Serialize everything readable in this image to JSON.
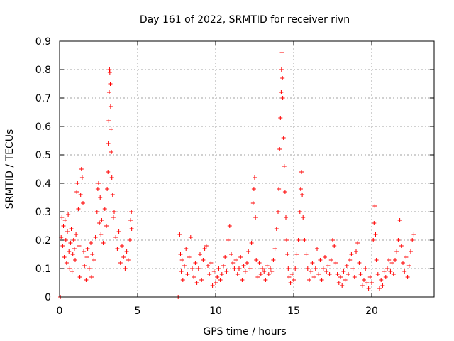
{
  "chart_data": {
    "type": "scatter",
    "title": "Day 161 of 2022, SRMTID for receiver rivn",
    "xlabel": "GPS time / hours",
    "ylabel": "SRMTID / TECUs",
    "xlim": [
      0,
      24
    ],
    "ylim": [
      0,
      0.9
    ],
    "x_ticks": [
      0,
      5,
      10,
      15,
      20
    ],
    "x_tick_labels": [
      "0",
      "5",
      "10",
      "15",
      "20"
    ],
    "y_ticks": [
      0,
      0.1,
      0.2,
      0.3,
      0.4,
      0.5,
      0.6,
      0.7,
      0.8,
      0.9
    ],
    "y_tick_labels": [
      "0",
      "0.1",
      "0.2",
      "0.3",
      "0.4",
      "0.5",
      "0.6",
      "0.7",
      "0.8",
      "0.9"
    ],
    "grid": true,
    "marker": "+",
    "color": "#ff0000",
    "series": [
      {
        "name": "SRMTID",
        "points": [
          [
            0.05,
            0.0
          ],
          [
            7.6,
            0.0
          ],
          [
            0.1,
            0.21
          ],
          [
            0.15,
            0.28
          ],
          [
            0.2,
            0.18
          ],
          [
            0.25,
            0.25
          ],
          [
            0.3,
            0.14
          ],
          [
            0.35,
            0.27
          ],
          [
            0.4,
            0.2
          ],
          [
            0.45,
            0.12
          ],
          [
            0.5,
            0.23
          ],
          [
            0.55,
            0.29
          ],
          [
            0.6,
            0.16
          ],
          [
            0.65,
            0.1
          ],
          [
            0.7,
            0.19
          ],
          [
            0.75,
            0.24
          ],
          [
            0.8,
            0.09
          ],
          [
            0.85,
            0.15
          ],
          [
            0.9,
            0.2
          ],
          [
            0.95,
            0.17
          ],
          [
            1.0,
            0.13
          ],
          [
            1.05,
            0.22
          ],
          [
            1.1,
            0.37
          ],
          [
            1.15,
            0.4
          ],
          [
            1.2,
            0.31
          ],
          [
            1.25,
            0.18
          ],
          [
            1.3,
            0.07
          ],
          [
            1.35,
            0.36
          ],
          [
            1.4,
            0.45
          ],
          [
            1.45,
            0.42
          ],
          [
            1.5,
            0.33
          ],
          [
            1.55,
            0.16
          ],
          [
            1.6,
            0.11
          ],
          [
            1.7,
            0.06
          ],
          [
            1.75,
            0.14
          ],
          [
            1.8,
            0.17
          ],
          [
            1.9,
            0.1
          ],
          [
            2.0,
            0.19
          ],
          [
            2.05,
            0.07
          ],
          [
            2.1,
            0.15
          ],
          [
            2.2,
            0.13
          ],
          [
            2.3,
            0.21
          ],
          [
            2.4,
            0.3
          ],
          [
            2.45,
            0.38
          ],
          [
            2.5,
            0.4
          ],
          [
            2.55,
            0.26
          ],
          [
            2.6,
            0.35
          ],
          [
            2.65,
            0.22
          ],
          [
            2.7,
            0.27
          ],
          [
            2.8,
            0.19
          ],
          [
            2.9,
            0.31
          ],
          [
            3.0,
            0.25
          ],
          [
            3.05,
            0.38
          ],
          [
            3.1,
            0.44
          ],
          [
            3.12,
            0.54
          ],
          [
            3.15,
            0.62
          ],
          [
            3.18,
            0.72
          ],
          [
            3.2,
            0.8
          ],
          [
            3.22,
            0.79
          ],
          [
            3.25,
            0.75
          ],
          [
            3.27,
            0.67
          ],
          [
            3.3,
            0.59
          ],
          [
            3.32,
            0.51
          ],
          [
            3.35,
            0.42
          ],
          [
            3.4,
            0.36
          ],
          [
            3.45,
            0.28
          ],
          [
            3.5,
            0.3
          ],
          [
            3.6,
            0.21
          ],
          [
            3.7,
            0.17
          ],
          [
            3.8,
            0.23
          ],
          [
            3.9,
            0.12
          ],
          [
            4.0,
            0.18
          ],
          [
            4.1,
            0.14
          ],
          [
            4.2,
            0.1
          ],
          [
            4.3,
            0.16
          ],
          [
            4.4,
            0.13
          ],
          [
            4.5,
            0.2
          ],
          [
            4.55,
            0.27
          ],
          [
            4.6,
            0.3
          ],
          [
            4.62,
            0.24
          ],
          [
            7.7,
            0.22
          ],
          [
            7.75,
            0.15
          ],
          [
            7.8,
            0.09
          ],
          [
            7.85,
            0.13
          ],
          [
            7.9,
            0.06
          ],
          [
            8.0,
            0.11
          ],
          [
            8.1,
            0.17
          ],
          [
            8.2,
            0.08
          ],
          [
            8.3,
            0.14
          ],
          [
            8.4,
            0.21
          ],
          [
            8.5,
            0.1
          ],
          [
            8.6,
            0.07
          ],
          [
            8.7,
            0.12
          ],
          [
            8.8,
            0.05
          ],
          [
            8.9,
            0.1
          ],
          [
            9.0,
            0.15
          ],
          [
            9.1,
            0.06
          ],
          [
            9.2,
            0.13
          ],
          [
            9.3,
            0.17
          ],
          [
            9.4,
            0.18
          ],
          [
            9.5,
            0.11
          ],
          [
            9.6,
            0.08
          ],
          [
            9.7,
            0.12
          ],
          [
            9.8,
            0.04
          ],
          [
            9.9,
            0.09
          ],
          [
            10.0,
            0.05
          ],
          [
            10.1,
            0.07
          ],
          [
            10.2,
            0.1
          ],
          [
            10.3,
            0.06
          ],
          [
            10.4,
            0.08
          ],
          [
            10.5,
            0.11
          ],
          [
            10.6,
            0.14
          ],
          [
            10.7,
            0.09
          ],
          [
            10.8,
            0.2
          ],
          [
            10.9,
            0.25
          ],
          [
            11.0,
            0.15
          ],
          [
            11.1,
            0.12
          ],
          [
            11.2,
            0.1
          ],
          [
            11.3,
            0.13
          ],
          [
            11.4,
            0.08
          ],
          [
            11.5,
            0.1
          ],
          [
            11.6,
            0.14
          ],
          [
            11.7,
            0.06
          ],
          [
            11.8,
            0.11
          ],
          [
            11.9,
            0.09
          ],
          [
            12.0,
            0.12
          ],
          [
            12.1,
            0.16
          ],
          [
            12.2,
            0.1
          ],
          [
            12.3,
            0.19
          ],
          [
            12.4,
            0.33
          ],
          [
            12.45,
            0.38
          ],
          [
            12.5,
            0.42
          ],
          [
            12.55,
            0.28
          ],
          [
            12.6,
            0.13
          ],
          [
            12.7,
            0.07
          ],
          [
            12.8,
            0.12
          ],
          [
            12.9,
            0.08
          ],
          [
            13.0,
            0.1
          ],
          [
            13.1,
            0.09
          ],
          [
            13.2,
            0.06
          ],
          [
            13.3,
            0.11
          ],
          [
            13.4,
            0.08
          ],
          [
            13.5,
            0.1
          ],
          [
            13.6,
            0.09
          ],
          [
            13.7,
            0.13
          ],
          [
            13.8,
            0.17
          ],
          [
            13.9,
            0.24
          ],
          [
            14.0,
            0.3
          ],
          [
            14.05,
            0.38
          ],
          [
            14.1,
            0.52
          ],
          [
            14.15,
            0.63
          ],
          [
            14.2,
            0.72
          ],
          [
            14.22,
            0.8
          ],
          [
            14.25,
            0.86
          ],
          [
            14.28,
            0.77
          ],
          [
            14.3,
            0.7
          ],
          [
            14.35,
            0.56
          ],
          [
            14.4,
            0.46
          ],
          [
            14.45,
            0.37
          ],
          [
            14.5,
            0.28
          ],
          [
            14.55,
            0.2
          ],
          [
            14.6,
            0.15
          ],
          [
            14.65,
            0.1
          ],
          [
            14.7,
            0.07
          ],
          [
            14.8,
            0.05
          ],
          [
            14.9,
            0.08
          ],
          [
            15.0,
            0.06
          ],
          [
            15.1,
            0.1
          ],
          [
            15.2,
            0.15
          ],
          [
            15.3,
            0.2
          ],
          [
            15.4,
            0.3
          ],
          [
            15.45,
            0.38
          ],
          [
            15.5,
            0.44
          ],
          [
            15.55,
            0.36
          ],
          [
            15.6,
            0.28
          ],
          [
            15.7,
            0.2
          ],
          [
            15.8,
            0.15
          ],
          [
            15.9,
            0.1
          ],
          [
            16.0,
            0.06
          ],
          [
            16.1,
            0.09
          ],
          [
            16.2,
            0.12
          ],
          [
            16.3,
            0.07
          ],
          [
            16.4,
            0.1
          ],
          [
            16.5,
            0.17
          ],
          [
            16.6,
            0.08
          ],
          [
            16.7,
            0.13
          ],
          [
            16.8,
            0.06
          ],
          [
            16.9,
            0.1
          ],
          [
            17.0,
            0.14
          ],
          [
            17.1,
            0.09
          ],
          [
            17.2,
            0.11
          ],
          [
            17.3,
            0.08
          ],
          [
            17.4,
            0.13
          ],
          [
            17.5,
            0.2
          ],
          [
            17.6,
            0.18
          ],
          [
            17.7,
            0.12
          ],
          [
            17.8,
            0.08
          ],
          [
            17.9,
            0.05
          ],
          [
            18.0,
            0.07
          ],
          [
            18.1,
            0.04
          ],
          [
            18.2,
            0.09
          ],
          [
            18.3,
            0.06
          ],
          [
            18.4,
            0.11
          ],
          [
            18.5,
            0.08
          ],
          [
            18.6,
            0.13
          ],
          [
            18.7,
            0.15
          ],
          [
            18.8,
            0.1
          ],
          [
            18.9,
            0.07
          ],
          [
            19.0,
            0.16
          ],
          [
            19.1,
            0.19
          ],
          [
            19.2,
            0.12
          ],
          [
            19.3,
            0.08
          ],
          [
            19.4,
            0.04
          ],
          [
            19.5,
            0.06
          ],
          [
            19.6,
            0.1
          ],
          [
            19.7,
            0.05
          ],
          [
            19.8,
            0.03
          ],
          [
            19.9,
            0.07
          ],
          [
            20.0,
            0.05
          ],
          [
            20.1,
            0.2
          ],
          [
            20.15,
            0.26
          ],
          [
            20.2,
            0.32
          ],
          [
            20.25,
            0.22
          ],
          [
            20.3,
            0.13
          ],
          [
            20.4,
            0.08
          ],
          [
            20.5,
            0.03
          ],
          [
            20.6,
            0.06
          ],
          [
            20.7,
            0.04
          ],
          [
            20.8,
            0.09
          ],
          [
            20.9,
            0.07
          ],
          [
            21.0,
            0.1
          ],
          [
            21.1,
            0.13
          ],
          [
            21.2,
            0.09
          ],
          [
            21.3,
            0.12
          ],
          [
            21.4,
            0.08
          ],
          [
            21.5,
            0.13
          ],
          [
            21.6,
            0.16
          ],
          [
            21.7,
            0.2
          ],
          [
            21.8,
            0.27
          ],
          [
            21.9,
            0.18
          ],
          [
            22.0,
            0.12
          ],
          [
            22.1,
            0.09
          ],
          [
            22.2,
            0.14
          ],
          [
            22.3,
            0.07
          ],
          [
            22.4,
            0.11
          ],
          [
            22.5,
            0.16
          ],
          [
            22.6,
            0.2
          ],
          [
            22.7,
            0.22
          ]
        ]
      }
    ]
  }
}
